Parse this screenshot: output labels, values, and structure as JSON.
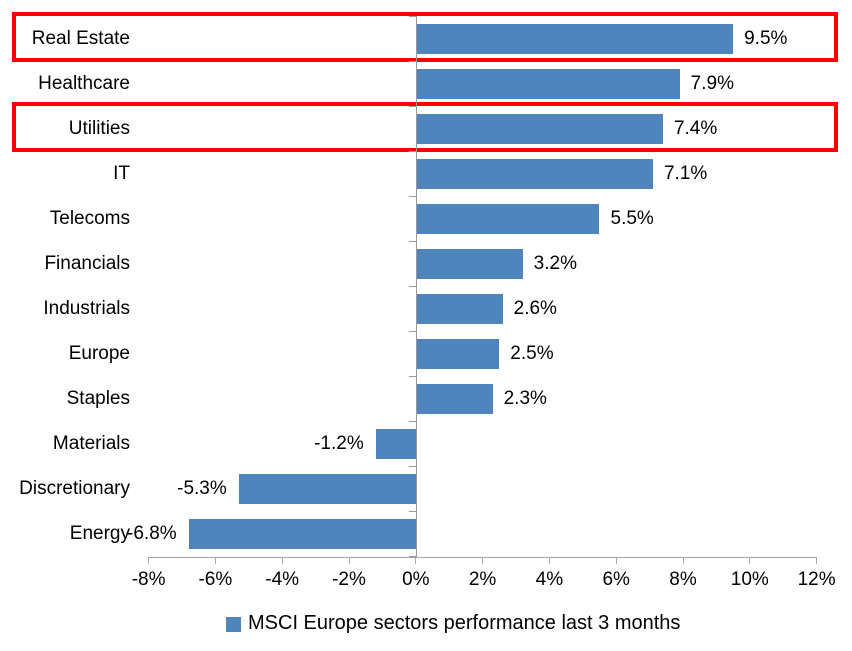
{
  "chart_data": {
    "type": "bar",
    "orientation": "horizontal",
    "title": "",
    "categories": [
      "Real Estate",
      "Healthcare",
      "Utilities",
      "IT",
      "Telecoms",
      "Financials",
      "Industrials",
      "Europe",
      "Staples",
      "Materials",
      "Discretionary",
      "Energy"
    ],
    "values": [
      9.5,
      7.9,
      7.4,
      7.1,
      5.5,
      3.2,
      2.6,
      2.5,
      2.3,
      -1.2,
      -5.3,
      -6.8
    ],
    "data_labels": [
      "9.5%",
      "7.9%",
      "7.4%",
      "7.1%",
      "5.5%",
      "3.2%",
      "2.6%",
      "2.5%",
      "2.3%",
      "-1.2%",
      "-5.3%",
      "-6.8%"
    ],
    "xlim": [
      -8,
      12
    ],
    "x_tick_values": [
      -8,
      -6,
      -4,
      -2,
      0,
      2,
      4,
      6,
      8,
      10,
      12
    ],
    "x_tick_labels": [
      "-8%",
      "-6%",
      "-4%",
      "-2%",
      "0%",
      "2%",
      "4%",
      "6%",
      "8%",
      "10%",
      "12%"
    ],
    "ylabel": "",
    "xlabel": "",
    "grid": false,
    "legend": "MSCI Europe sectors performance last 3 months",
    "legend_position": "bottom-center",
    "bar_color": "#4f84bd",
    "axis_color": "#a6a6a6",
    "category_axis_color": "#999999",
    "highlight_color": "#ff0000",
    "highlighted_categories": [
      "Real Estate",
      "Utilities"
    ]
  }
}
